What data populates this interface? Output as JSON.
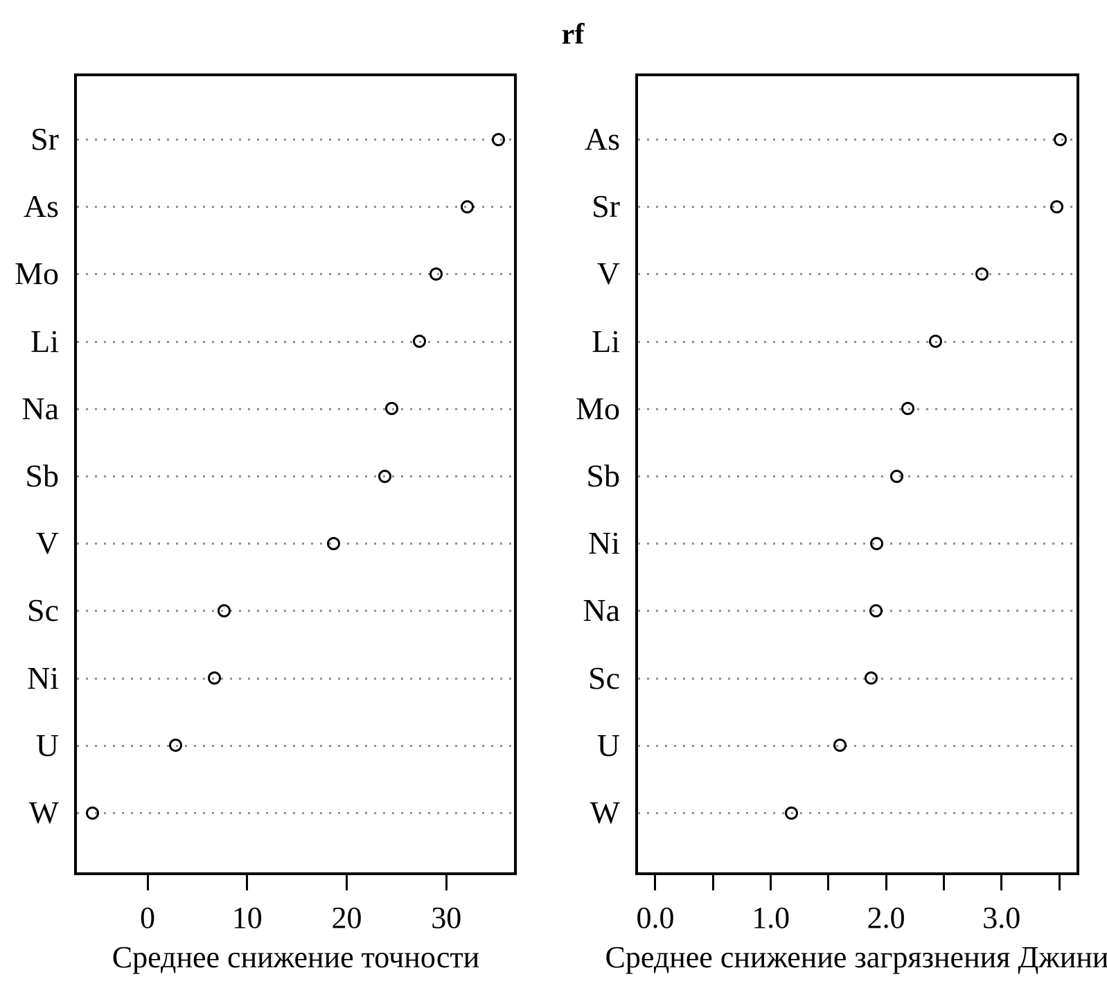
{
  "title": "rf",
  "colors": {
    "point_stroke": "#000000",
    "gridline": "#8f8f8f",
    "text": "#000000",
    "background": "#ffffff"
  },
  "chart_data": [
    {
      "type": "scatter",
      "subtype": "dotchart",
      "panel": "left",
      "title": "rf",
      "xlabel": "Среднее снижение точности",
      "ylabel": "",
      "grid": "dotted-horizontal",
      "legend": "none",
      "categories": [
        "Sr",
        "As",
        "Mo",
        "Li",
        "Na",
        "Sb",
        "V",
        "Sc",
        "Ni",
        "U",
        "W"
      ],
      "values": [
        35.2,
        32.1,
        29.0,
        27.3,
        24.5,
        23.8,
        18.7,
        7.7,
        6.7,
        2.8,
        -5.5
      ],
      "xlim": [
        -7.1,
        36.8
      ],
      "ticks": {
        "values": [
          0,
          10,
          20,
          30
        ],
        "labels": [
          "0",
          "10",
          "20",
          "30"
        ]
      }
    },
    {
      "type": "scatter",
      "subtype": "dotchart",
      "panel": "right",
      "title": "rf",
      "xlabel": "Среднее снижение загрязнения Джини",
      "ylabel": "",
      "grid": "dotted-horizontal",
      "legend": "none",
      "categories": [
        "As",
        "Sr",
        "V",
        "Li",
        "Mo",
        "Sb",
        "Ni",
        "Na",
        "Sc",
        "U",
        "W"
      ],
      "values": [
        3.51,
        3.48,
        2.83,
        2.43,
        2.19,
        2.09,
        1.92,
        1.91,
        1.87,
        1.6,
        1.18
      ],
      "xlim": [
        -0.15,
        3.65
      ],
      "ticks": {
        "values": [
          0,
          0.5,
          1,
          1.5,
          2,
          2.5,
          3,
          3.5
        ],
        "labels": [
          "0.0",
          "",
          "1.0",
          "",
          "2.0",
          "",
          "3.0",
          ""
        ]
      }
    }
  ]
}
